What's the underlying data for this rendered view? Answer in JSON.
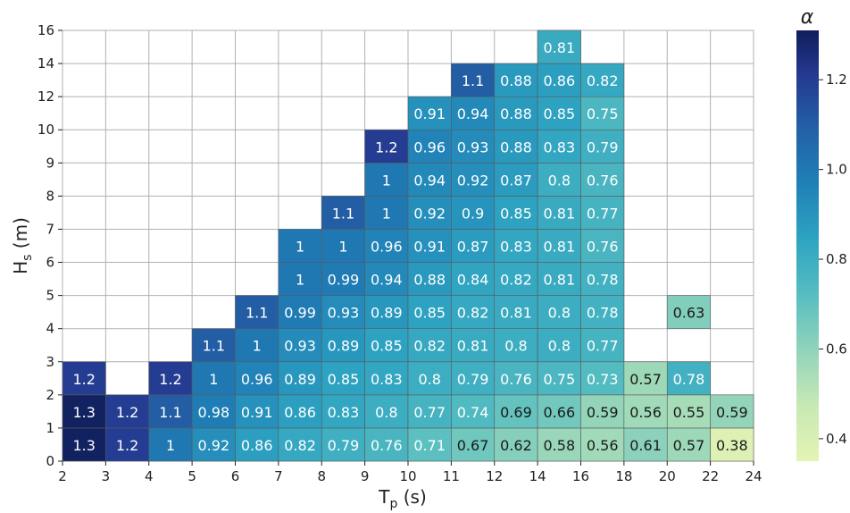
{
  "chart_data": {
    "type": "heatmap",
    "xlabel": "T_p (s)",
    "ylabel": "H_s (m)",
    "colorbar_label": "α",
    "x_edges": [
      "2",
      "3",
      "4",
      "5",
      "6",
      "7",
      "8",
      "9",
      "10",
      "11",
      "12",
      "14",
      "16",
      "18",
      "20",
      "22",
      "24"
    ],
    "y_edges": [
      "0",
      "1",
      "2",
      "3",
      "4",
      "5",
      "6",
      "7",
      "8",
      "9",
      "10",
      "12",
      "14",
      "16"
    ],
    "colorbar_ticks": [
      "0.4",
      "0.6",
      "0.8",
      "1.0",
      "1.2"
    ],
    "color_range": [
      0.35,
      1.31
    ],
    "cells": [
      {
        "col": 0,
        "row": 0,
        "value": 1.3,
        "label": "1.3"
      },
      {
        "col": 1,
        "row": 0,
        "value": 1.2,
        "label": "1.2"
      },
      {
        "col": 2,
        "row": 0,
        "value": 1.0,
        "label": "1"
      },
      {
        "col": 3,
        "row": 0,
        "value": 0.92,
        "label": "0.92"
      },
      {
        "col": 4,
        "row": 0,
        "value": 0.86,
        "label": "0.86"
      },
      {
        "col": 5,
        "row": 0,
        "value": 0.82,
        "label": "0.82"
      },
      {
        "col": 6,
        "row": 0,
        "value": 0.79,
        "label": "0.79"
      },
      {
        "col": 7,
        "row": 0,
        "value": 0.76,
        "label": "0.76"
      },
      {
        "col": 8,
        "row": 0,
        "value": 0.71,
        "label": "0.71"
      },
      {
        "col": 9,
        "row": 0,
        "value": 0.67,
        "label": "0.67"
      },
      {
        "col": 10,
        "row": 0,
        "value": 0.62,
        "label": "0.62"
      },
      {
        "col": 11,
        "row": 0,
        "value": 0.58,
        "label": "0.58"
      },
      {
        "col": 12,
        "row": 0,
        "value": 0.56,
        "label": "0.56"
      },
      {
        "col": 13,
        "row": 0,
        "value": 0.61,
        "label": "0.61"
      },
      {
        "col": 14,
        "row": 0,
        "value": 0.57,
        "label": "0.57"
      },
      {
        "col": 15,
        "row": 0,
        "value": 0.38,
        "label": "0.38"
      },
      {
        "col": 0,
        "row": 1,
        "value": 1.3,
        "label": "1.3"
      },
      {
        "col": 1,
        "row": 1,
        "value": 1.2,
        "label": "1.2"
      },
      {
        "col": 2,
        "row": 1,
        "value": 1.1,
        "label": "1.1"
      },
      {
        "col": 3,
        "row": 1,
        "value": 0.98,
        "label": "0.98"
      },
      {
        "col": 4,
        "row": 1,
        "value": 0.91,
        "label": "0.91"
      },
      {
        "col": 5,
        "row": 1,
        "value": 0.86,
        "label": "0.86"
      },
      {
        "col": 6,
        "row": 1,
        "value": 0.83,
        "label": "0.83"
      },
      {
        "col": 7,
        "row": 1,
        "value": 0.8,
        "label": "0.8"
      },
      {
        "col": 8,
        "row": 1,
        "value": 0.77,
        "label": "0.77"
      },
      {
        "col": 9,
        "row": 1,
        "value": 0.74,
        "label": "0.74"
      },
      {
        "col": 10,
        "row": 1,
        "value": 0.69,
        "label": "0.69"
      },
      {
        "col": 11,
        "row": 1,
        "value": 0.66,
        "label": "0.66"
      },
      {
        "col": 12,
        "row": 1,
        "value": 0.59,
        "label": "0.59"
      },
      {
        "col": 13,
        "row": 1,
        "value": 0.56,
        "label": "0.56"
      },
      {
        "col": 14,
        "row": 1,
        "value": 0.55,
        "label": "0.55"
      },
      {
        "col": 15,
        "row": 1,
        "value": 0.59,
        "label": "0.59"
      },
      {
        "col": 0,
        "row": 2,
        "value": 1.2,
        "label": "1.2"
      },
      {
        "col": 2,
        "row": 2,
        "value": 1.2,
        "label": "1.2"
      },
      {
        "col": 3,
        "row": 2,
        "value": 1.0,
        "label": "1"
      },
      {
        "col": 4,
        "row": 2,
        "value": 0.96,
        "label": "0.96"
      },
      {
        "col": 5,
        "row": 2,
        "value": 0.89,
        "label": "0.89"
      },
      {
        "col": 6,
        "row": 2,
        "value": 0.85,
        "label": "0.85"
      },
      {
        "col": 7,
        "row": 2,
        "value": 0.83,
        "label": "0.83"
      },
      {
        "col": 8,
        "row": 2,
        "value": 0.8,
        "label": "0.8"
      },
      {
        "col": 9,
        "row": 2,
        "value": 0.79,
        "label": "0.79"
      },
      {
        "col": 10,
        "row": 2,
        "value": 0.76,
        "label": "0.76"
      },
      {
        "col": 11,
        "row": 2,
        "value": 0.75,
        "label": "0.75"
      },
      {
        "col": 12,
        "row": 2,
        "value": 0.73,
        "label": "0.73"
      },
      {
        "col": 13,
        "row": 2,
        "value": 0.57,
        "label": "0.57"
      },
      {
        "col": 14,
        "row": 2,
        "value": 0.78,
        "label": "0.78"
      },
      {
        "col": 3,
        "row": 3,
        "value": 1.1,
        "label": "1.1"
      },
      {
        "col": 4,
        "row": 3,
        "value": 1.0,
        "label": "1"
      },
      {
        "col": 5,
        "row": 3,
        "value": 0.93,
        "label": "0.93"
      },
      {
        "col": 6,
        "row": 3,
        "value": 0.89,
        "label": "0.89"
      },
      {
        "col": 7,
        "row": 3,
        "value": 0.85,
        "label": "0.85"
      },
      {
        "col": 8,
        "row": 3,
        "value": 0.82,
        "label": "0.82"
      },
      {
        "col": 9,
        "row": 3,
        "value": 0.81,
        "label": "0.81"
      },
      {
        "col": 10,
        "row": 3,
        "value": 0.8,
        "label": "0.8"
      },
      {
        "col": 11,
        "row": 3,
        "value": 0.8,
        "label": "0.8"
      },
      {
        "col": 12,
        "row": 3,
        "value": 0.77,
        "label": "0.77"
      },
      {
        "col": 4,
        "row": 4,
        "value": 1.1,
        "label": "1.1"
      },
      {
        "col": 5,
        "row": 4,
        "value": 0.99,
        "label": "0.99"
      },
      {
        "col": 6,
        "row": 4,
        "value": 0.93,
        "label": "0.93"
      },
      {
        "col": 7,
        "row": 4,
        "value": 0.89,
        "label": "0.89"
      },
      {
        "col": 8,
        "row": 4,
        "value": 0.85,
        "label": "0.85"
      },
      {
        "col": 9,
        "row": 4,
        "value": 0.82,
        "label": "0.82"
      },
      {
        "col": 10,
        "row": 4,
        "value": 0.81,
        "label": "0.81"
      },
      {
        "col": 11,
        "row": 4,
        "value": 0.8,
        "label": "0.8"
      },
      {
        "col": 12,
        "row": 4,
        "value": 0.78,
        "label": "0.78"
      },
      {
        "col": 14,
        "row": 4,
        "value": 0.63,
        "label": "0.63"
      },
      {
        "col": 5,
        "row": 5,
        "value": 1.0,
        "label": "1"
      },
      {
        "col": 6,
        "row": 5,
        "value": 0.99,
        "label": "0.99"
      },
      {
        "col": 7,
        "row": 5,
        "value": 0.94,
        "label": "0.94"
      },
      {
        "col": 8,
        "row": 5,
        "value": 0.88,
        "label": "0.88"
      },
      {
        "col": 9,
        "row": 5,
        "value": 0.84,
        "label": "0.84"
      },
      {
        "col": 10,
        "row": 5,
        "value": 0.82,
        "label": "0.82"
      },
      {
        "col": 11,
        "row": 5,
        "value": 0.81,
        "label": "0.81"
      },
      {
        "col": 12,
        "row": 5,
        "value": 0.78,
        "label": "0.78"
      },
      {
        "col": 5,
        "row": 6,
        "value": 1.0,
        "label": "1"
      },
      {
        "col": 6,
        "row": 6,
        "value": 1.0,
        "label": "1"
      },
      {
        "col": 7,
        "row": 6,
        "value": 0.96,
        "label": "0.96"
      },
      {
        "col": 8,
        "row": 6,
        "value": 0.91,
        "label": "0.91"
      },
      {
        "col": 9,
        "row": 6,
        "value": 0.87,
        "label": "0.87"
      },
      {
        "col": 10,
        "row": 6,
        "value": 0.83,
        "label": "0.83"
      },
      {
        "col": 11,
        "row": 6,
        "value": 0.81,
        "label": "0.81"
      },
      {
        "col": 12,
        "row": 6,
        "value": 0.76,
        "label": "0.76"
      },
      {
        "col": 6,
        "row": 7,
        "value": 1.1,
        "label": "1.1"
      },
      {
        "col": 7,
        "row": 7,
        "value": 1.0,
        "label": "1"
      },
      {
        "col": 8,
        "row": 7,
        "value": 0.92,
        "label": "0.92"
      },
      {
        "col": 9,
        "row": 7,
        "value": 0.9,
        "label": "0.9"
      },
      {
        "col": 10,
        "row": 7,
        "value": 0.85,
        "label": "0.85"
      },
      {
        "col": 11,
        "row": 7,
        "value": 0.81,
        "label": "0.81"
      },
      {
        "col": 12,
        "row": 7,
        "value": 0.77,
        "label": "0.77"
      },
      {
        "col": 7,
        "row": 8,
        "value": 1.0,
        "label": "1"
      },
      {
        "col": 8,
        "row": 8,
        "value": 0.94,
        "label": "0.94"
      },
      {
        "col": 9,
        "row": 8,
        "value": 0.92,
        "label": "0.92"
      },
      {
        "col": 10,
        "row": 8,
        "value": 0.87,
        "label": "0.87"
      },
      {
        "col": 11,
        "row": 8,
        "value": 0.8,
        "label": "0.8"
      },
      {
        "col": 12,
        "row": 8,
        "value": 0.76,
        "label": "0.76"
      },
      {
        "col": 7,
        "row": 9,
        "value": 1.2,
        "label": "1.2"
      },
      {
        "col": 8,
        "row": 9,
        "value": 0.96,
        "label": "0.96"
      },
      {
        "col": 9,
        "row": 9,
        "value": 0.93,
        "label": "0.93"
      },
      {
        "col": 10,
        "row": 9,
        "value": 0.88,
        "label": "0.88"
      },
      {
        "col": 11,
        "row": 9,
        "value": 0.83,
        "label": "0.83"
      },
      {
        "col": 12,
        "row": 9,
        "value": 0.79,
        "label": "0.79"
      },
      {
        "col": 8,
        "row": 10,
        "value": 0.91,
        "label": "0.91"
      },
      {
        "col": 9,
        "row": 10,
        "value": 0.94,
        "label": "0.94"
      },
      {
        "col": 10,
        "row": 10,
        "value": 0.88,
        "label": "0.88"
      },
      {
        "col": 11,
        "row": 10,
        "value": 0.85,
        "label": "0.85"
      },
      {
        "col": 12,
        "row": 10,
        "value": 0.75,
        "label": "0.75"
      },
      {
        "col": 9,
        "row": 11,
        "value": 1.1,
        "label": "1.1"
      },
      {
        "col": 10,
        "row": 11,
        "value": 0.88,
        "label": "0.88"
      },
      {
        "col": 11,
        "row": 11,
        "value": 0.86,
        "label": "0.86"
      },
      {
        "col": 12,
        "row": 11,
        "value": 0.82,
        "label": "0.82"
      },
      {
        "col": 11,
        "row": 12,
        "value": 0.81,
        "label": "0.81"
      }
    ]
  }
}
